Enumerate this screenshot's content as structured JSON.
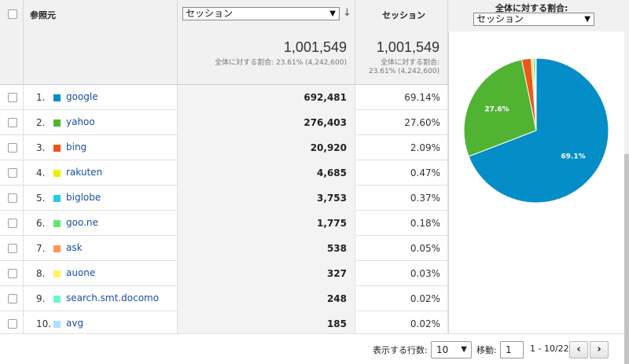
{
  "header": {
    "source_label": "参照元",
    "metric_select": "セッション",
    "sessions_label": "セッション",
    "pct_label": "全体に対する割合:",
    "pct_select": "セッション"
  },
  "totals": {
    "metric_total": "1,001,549",
    "metric_note": "全体に対する割合: 23.61% (4,242,600)",
    "sessions_total": "1,001,549",
    "sessions_note_line1": "全体に対する割合:",
    "sessions_note_line2": "23.61% (4,242,600)"
  },
  "rows": [
    {
      "rank": "1.",
      "source": "google",
      "color": "#058dc7",
      "sessions": "692,481",
      "pct": "69.14%"
    },
    {
      "rank": "2.",
      "source": "yahoo",
      "color": "#50b432",
      "sessions": "276,403",
      "pct": "27.60%"
    },
    {
      "rank": "3.",
      "source": "bing",
      "color": "#ed561b",
      "sessions": "20,920",
      "pct": "2.09%"
    },
    {
      "rank": "4.",
      "source": "rakuten",
      "color": "#edef00",
      "sessions": "4,685",
      "pct": "0.47%"
    },
    {
      "rank": "5.",
      "source": "biglobe",
      "color": "#24cbe5",
      "sessions": "3,753",
      "pct": "0.37%"
    },
    {
      "rank": "6.",
      "source": "goo.ne",
      "color": "#64e572",
      "sessions": "1,775",
      "pct": "0.18%"
    },
    {
      "rank": "7.",
      "source": "ask",
      "color": "#ff9655",
      "sessions": "538",
      "pct": "0.05%"
    },
    {
      "rank": "8.",
      "source": "auone",
      "color": "#fff263",
      "sessions": "327",
      "pct": "0.03%"
    },
    {
      "rank": "9.",
      "source": "search.smt.docomo",
      "color": "#6af9c4",
      "sessions": "248",
      "pct": "0.02%"
    },
    {
      "rank": "10.",
      "source": "avg",
      "color": "#b2deff",
      "sessions": "185",
      "pct": "0.02%"
    }
  ],
  "chart_data": {
    "type": "pie",
    "slices": [
      {
        "label": "google",
        "value": 69.14,
        "color": "#058dc7",
        "data_label": "69.1%"
      },
      {
        "label": "yahoo",
        "value": 27.6,
        "color": "#50b432",
        "data_label": "27.6%"
      },
      {
        "label": "bing",
        "value": 2.09,
        "color": "#ed561b",
        "data_label": ""
      },
      {
        "label": "rakuten",
        "value": 0.47,
        "color": "#edef00",
        "data_label": ""
      },
      {
        "label": "biglobe",
        "value": 0.37,
        "color": "#24cbe5",
        "data_label": ""
      },
      {
        "label": "goo.ne",
        "value": 0.18,
        "color": "#64e572",
        "data_label": ""
      },
      {
        "label": "ask",
        "value": 0.05,
        "color": "#ff9655",
        "data_label": ""
      },
      {
        "label": "auone",
        "value": 0.03,
        "color": "#fff263",
        "data_label": ""
      },
      {
        "label": "search.smt.docomo",
        "value": 0.02,
        "color": "#6af9c4",
        "data_label": ""
      },
      {
        "label": "avg",
        "value": 0.02,
        "color": "#b2deff",
        "data_label": ""
      }
    ]
  },
  "footer": {
    "rows_label": "表示する行数:",
    "rows_value": "10",
    "goto_label": "移動:",
    "goto_value": "1",
    "range": "1 - 10/22",
    "prev": "‹",
    "next": "›"
  }
}
